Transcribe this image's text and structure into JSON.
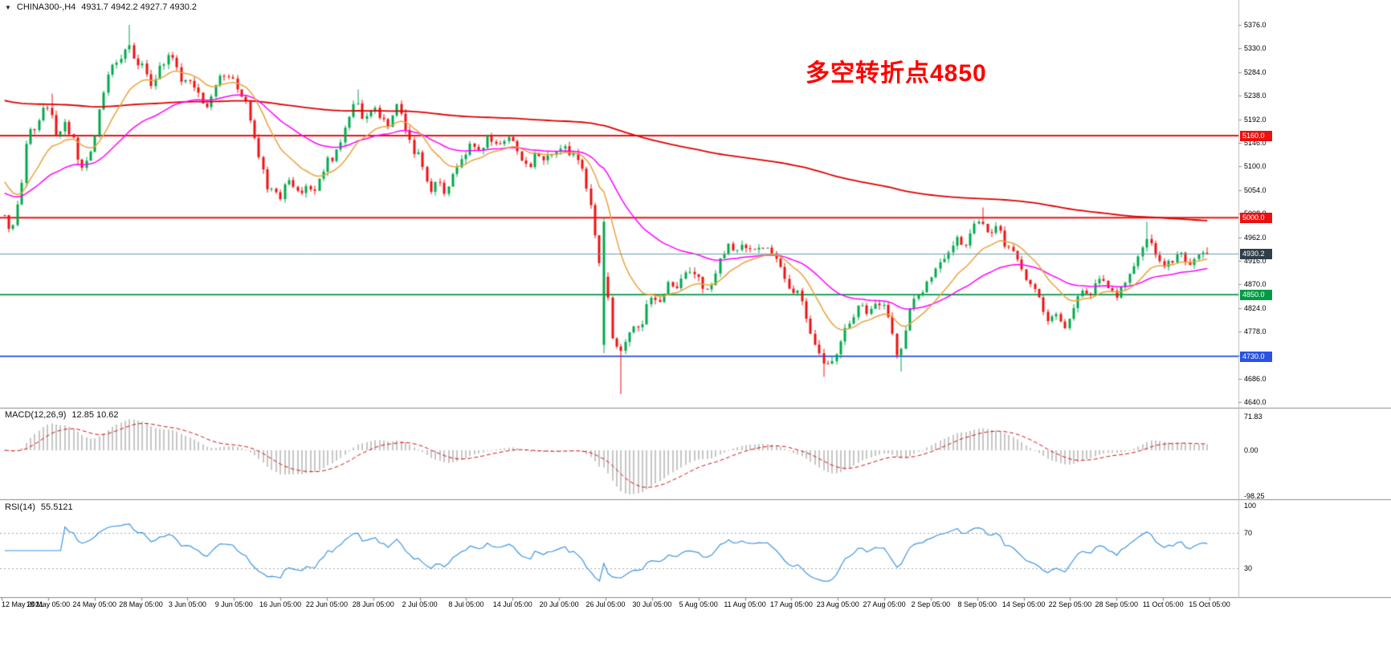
{
  "header": {
    "collapse_icon": "▼",
    "symbol_timeframe": "CHINA300-,H4",
    "ohlc": "4931.7 4942.2 4927.7 4930.2"
  },
  "annotation": {
    "text": "多空转折点4850",
    "color": "#FF0000"
  },
  "chart_data": {
    "type": "candlestick",
    "symbol": "CHINA300-",
    "timeframe": "H4",
    "last_bar": {
      "open": 4931.7,
      "high": 4942.2,
      "low": 4927.7,
      "close": 4930.2
    },
    "price_axis": {
      "min": 4640,
      "max": 5376,
      "step": 46,
      "ticks": [
        "5376.0",
        "5330.0",
        "5284.0",
        "5238.0",
        "5192.0",
        "5146.0",
        "5100.0",
        "5054.0",
        "5008.0",
        "4962.0",
        "4916.0",
        "4870.0",
        "4824.0",
        "4778.0",
        "4732.0",
        "4686.0",
        "4640.0"
      ]
    },
    "x_axis_labels": [
      "12 May 2021",
      "18 May 05:00",
      "24 May 05:00",
      "28 May 05:00",
      "3 Jun 05:00",
      "9 Jun 05:00",
      "16 Jun 05:00",
      "22 Jun 05:00",
      "28 Jun 05:00",
      "2 Jul 05:00",
      "8 Jul 05:00",
      "14 Jul 05:00",
      "20 Jul 05:00",
      "26 Jul 05:00",
      "30 Jul 05:00",
      "5 Aug 05:00",
      "11 Aug 05:00",
      "17 Aug 05:00",
      "23 Aug 05:00",
      "27 Aug 05:00",
      "2 Sep 05:00",
      "8 Sep 05:00",
      "14 Sep 05:00",
      "22 Sep 05:00",
      "28 Sep 05:00",
      "11 Oct 05:00",
      "15 Oct 05:00"
    ],
    "hlines": [
      {
        "name": "resistance-5160",
        "label": "5160.0",
        "value": 5160,
        "color": "#E81212"
      },
      {
        "name": "resistance-5000",
        "label": "5000.0",
        "value": 5000,
        "color": "#E81212"
      },
      {
        "name": "support-4850",
        "label": "4850.0",
        "value": 4850,
        "color": "#009A44"
      },
      {
        "name": "support-4730",
        "label": "4730.0",
        "value": 4730,
        "color": "#2952E3"
      }
    ],
    "current_price": {
      "label": "4930.2",
      "value": 4930.2,
      "line_color": "#6C9BA5",
      "badge_color": "#2F3E48"
    },
    "candles": {
      "bars_rendered": 280,
      "anchors": [
        [
          0.0,
          5005
        ],
        [
          0.006,
          4972
        ],
        [
          0.014,
          5060
        ],
        [
          0.02,
          5185
        ],
        [
          0.026,
          5160
        ],
        [
          0.032,
          5210
        ],
        [
          0.038,
          5225
        ],
        [
          0.044,
          5150
        ],
        [
          0.05,
          5180
        ],
        [
          0.056,
          5165
        ],
        [
          0.061,
          5120
        ],
        [
          0.066,
          5095
        ],
        [
          0.072,
          5125
        ],
        [
          0.078,
          5195
        ],
        [
          0.084,
          5260
        ],
        [
          0.09,
          5300
        ],
        [
          0.096,
          5310
        ],
        [
          0.1,
          5330
        ],
        [
          0.104,
          5335
        ],
        [
          0.109,
          5290
        ],
        [
          0.115,
          5305
        ],
        [
          0.121,
          5255
        ],
        [
          0.128,
          5285
        ],
        [
          0.135,
          5318
        ],
        [
          0.142,
          5300
        ],
        [
          0.149,
          5262
        ],
        [
          0.155,
          5272
        ],
        [
          0.161,
          5240
        ],
        [
          0.167,
          5205
        ],
        [
          0.173,
          5242
        ],
        [
          0.18,
          5278
        ],
        [
          0.19,
          5268
        ],
        [
          0.199,
          5232
        ],
        [
          0.206,
          5180
        ],
        [
          0.213,
          5108
        ],
        [
          0.22,
          5052
        ],
        [
          0.229,
          5040
        ],
        [
          0.237,
          5082
        ],
        [
          0.244,
          5046
        ],
        [
          0.251,
          5066
        ],
        [
          0.259,
          5058
        ],
        [
          0.268,
          5108
        ],
        [
          0.277,
          5128
        ],
        [
          0.287,
          5198
        ],
        [
          0.293,
          5228
        ],
        [
          0.299,
          5186
        ],
        [
          0.306,
          5218
        ],
        [
          0.313,
          5196
        ],
        [
          0.32,
          5180
        ],
        [
          0.327,
          5224
        ],
        [
          0.333,
          5172
        ],
        [
          0.34,
          5132
        ],
        [
          0.346,
          5118
        ],
        [
          0.353,
          5052
        ],
        [
          0.36,
          5076
        ],
        [
          0.366,
          5046
        ],
        [
          0.373,
          5086
        ],
        [
          0.383,
          5124
        ],
        [
          0.389,
          5148
        ],
        [
          0.396,
          5134
        ],
        [
          0.402,
          5164
        ],
        [
          0.409,
          5140
        ],
        [
          0.421,
          5154
        ],
        [
          0.429,
          5120
        ],
        [
          0.436,
          5100
        ],
        [
          0.442,
          5130
        ],
        [
          0.449,
          5106
        ],
        [
          0.46,
          5140
        ],
        [
          0.469,
          5130
        ],
        [
          0.476,
          5118
        ],
        [
          0.482,
          5078
        ],
        [
          0.488,
          5012
        ],
        [
          0.495,
          4902
        ],
        [
          0.501,
          4858
        ],
        [
          0.506,
          4752
        ],
        [
          0.51,
          4744
        ],
        [
          0.516,
          4752
        ],
        [
          0.522,
          4798
        ],
        [
          0.529,
          4788
        ],
        [
          0.537,
          4848
        ],
        [
          0.545,
          4838
        ],
        [
          0.552,
          4878
        ],
        [
          0.559,
          4858
        ],
        [
          0.565,
          4898
        ],
        [
          0.575,
          4888
        ],
        [
          0.582,
          4858
        ],
        [
          0.589,
          4878
        ],
        [
          0.595,
          4918
        ],
        [
          0.601,
          4948
        ],
        [
          0.608,
          4928
        ],
        [
          0.614,
          4956
        ],
        [
          0.621,
          4930
        ],
        [
          0.628,
          4948
        ],
        [
          0.634,
          4938
        ],
        [
          0.641,
          4918
        ],
        [
          0.652,
          4868
        ],
        [
          0.661,
          4848
        ],
        [
          0.667,
          4798
        ],
        [
          0.674,
          4758
        ],
        [
          0.681,
          4712
        ],
        [
          0.689,
          4722
        ],
        [
          0.697,
          4778
        ],
        [
          0.704,
          4798
        ],
        [
          0.71,
          4838
        ],
        [
          0.717,
          4818
        ],
        [
          0.728,
          4838
        ],
        [
          0.737,
          4798
        ],
        [
          0.743,
          4722
        ],
        [
          0.749,
          4778
        ],
        [
          0.756,
          4848
        ],
        [
          0.767,
          4868
        ],
        [
          0.773,
          4898
        ],
        [
          0.779,
          4918
        ],
        [
          0.786,
          4938
        ],
        [
          0.792,
          4958
        ],
        [
          0.799,
          4938
        ],
        [
          0.805,
          4978
        ],
        [
          0.812,
          4998
        ],
        [
          0.819,
          4958
        ],
        [
          0.825,
          4988
        ],
        [
          0.832,
          4948
        ],
        [
          0.844,
          4918
        ],
        [
          0.849,
          4878
        ],
        [
          0.856,
          4858
        ],
        [
          0.862,
          4828
        ],
        [
          0.869,
          4798
        ],
        [
          0.875,
          4808
        ],
        [
          0.882,
          4788
        ],
        [
          0.889,
          4818
        ],
        [
          0.895,
          4858
        ],
        [
          0.902,
          4848
        ],
        [
          0.908,
          4878
        ],
        [
          0.92,
          4868
        ],
        [
          0.925,
          4848
        ],
        [
          0.932,
          4868
        ],
        [
          0.938,
          4898
        ],
        [
          0.945,
          4938
        ],
        [
          0.951,
          4958
        ],
        [
          0.958,
          4928
        ],
        [
          0.964,
          4898
        ],
        [
          0.971,
          4918
        ],
        [
          0.977,
          4938
        ],
        [
          0.984,
          4908
        ],
        [
          0.991,
          4924
        ],
        [
          1.0,
          4930.2
        ]
      ],
      "wick_extremes": [
        {
          "p": 0.104,
          "high": 5376
        },
        {
          "p": 0.038,
          "high": 5242
        },
        {
          "p": 0.294,
          "high": 5250
        },
        {
          "p": 0.513,
          "low": 4656
        },
        {
          "p": 0.681,
          "low": 4690
        },
        {
          "p": 0.744,
          "low": 4700
        },
        {
          "p": 0.812,
          "high": 5020
        },
        {
          "p": 0.951,
          "high": 4992
        }
      ],
      "special_bars": [
        {
          "p": 0.4965,
          "open": 4752,
          "close": 4992,
          "high": 5000,
          "low": 4736
        }
      ]
    },
    "indicators": {
      "moving_averages": [
        {
          "name": "ma-slow",
          "period": 300,
          "seed": 5230,
          "color": "#DD0000",
          "width": 1.8
        },
        {
          "name": "ma-medium",
          "period": 40,
          "seed": 5050,
          "color": "#FF00FF",
          "width": 1.5
        },
        {
          "name": "ma-fast",
          "period": 14,
          "seed": 5080,
          "color": "#E8A33D",
          "width": 1.5
        }
      ],
      "macd": {
        "label": "MACD(12,26,9)",
        "display_values": "12.85 10.62",
        "params": [
          12,
          26,
          9
        ],
        "axis_ticks": [
          "71.83",
          "0.00",
          "-98.25"
        ],
        "range": [
          -98.25,
          71.83
        ]
      },
      "rsi": {
        "label": "RSI(14)",
        "display_value": "55.5121",
        "period": 14,
        "axis_ticks": [
          "100",
          "70",
          "30"
        ],
        "levels": [
          70,
          30
        ]
      }
    },
    "colors": {
      "up": "#00A94C",
      "down": "#EE1111",
      "macd_hist": "#C6C6C6",
      "macd_signal": "#D31414",
      "rsi_line": "#3E96E0",
      "separator": "#8A8A8A",
      "level_dashed": "#A8A8A8"
    }
  }
}
